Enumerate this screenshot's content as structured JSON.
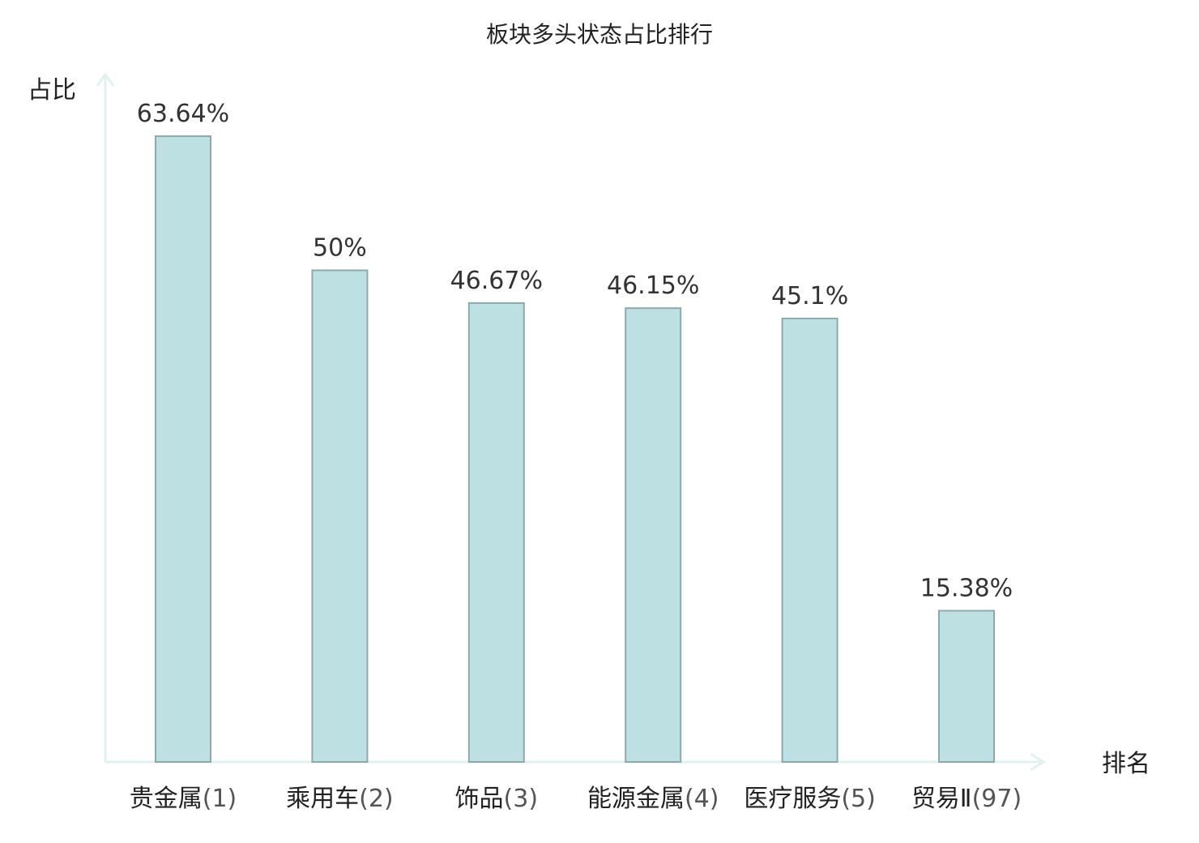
{
  "chart_data": {
    "type": "bar",
    "title": "板块多头状态占比排行",
    "ylabel": "占比",
    "xlabel": "排名",
    "ylim": [
      0,
      70
    ],
    "grid": false,
    "categories": [
      {
        "name": "贵金属",
        "rank": "(1)"
      },
      {
        "name": "乘用车",
        "rank": "(2)"
      },
      {
        "name": "饰品",
        "rank": "(3)"
      },
      {
        "name": "能源金属",
        "rank": "(4)"
      },
      {
        "name": "医疗服务",
        "rank": "(5)"
      },
      {
        "name": "贸易Ⅱ",
        "rank": "(97)"
      }
    ],
    "values": [
      63.64,
      50,
      46.67,
      46.15,
      45.1,
      15.38
    ],
    "value_labels": [
      "63.64%",
      "50%",
      "46.67%",
      "46.15%",
      "45.1%",
      "15.38%"
    ],
    "highlight_index": 5,
    "colors": {
      "bar_fill": "#bde0e3",
      "bar_stroke": "#8fa9ab",
      "axis": "#dff2f0",
      "highlight_text": "#d9201f"
    }
  }
}
